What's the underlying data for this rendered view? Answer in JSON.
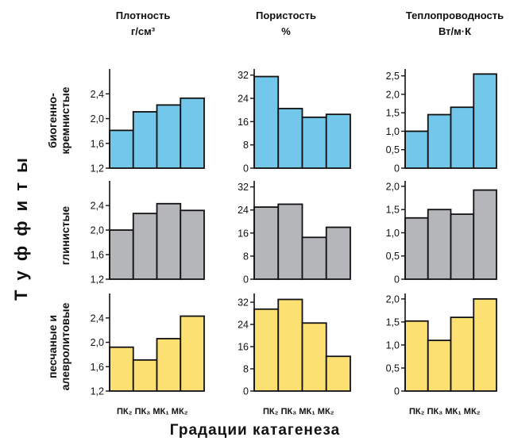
{
  "columns": [
    {
      "title_line1": "Плотность",
      "title_line2": "г/см³"
    },
    {
      "title_line1": "Пористость",
      "title_line2": "%"
    },
    {
      "title_line1": "Теплопроводность",
      "title_line2": "Вт/м·К"
    }
  ],
  "rows": [
    "биогенно-кремнистые",
    "глинистые",
    "песчаные и алевролитовые"
  ],
  "row_label_lines": [
    [
      "биогенно-",
      "кремнистые"
    ],
    [
      "глинистые",
      ""
    ],
    [
      "песчаные и",
      "алевролитовые"
    ]
  ],
  "y_group_label": "Т у ф ф и т ы",
  "x_title": "Градации катагенеза",
  "x_tick_labels": "ПК₂ ПК₃ МК₁ МК₂",
  "colors": {
    "blue": "#72C7EA",
    "gray": "#B5B6B9",
    "yellow": "#FCE072",
    "axis": "#111111"
  },
  "chart_data": [
    {
      "type": "bar",
      "row": "биогенно-кремнистые",
      "column": "Плотность г/см³",
      "categories": [
        "ПК₂",
        "ПК₃",
        "МК₁",
        "МК₂"
      ],
      "values": [
        1.81,
        2.11,
        2.22,
        2.33
      ],
      "ylim": [
        1.2,
        2.75
      ],
      "yticks": [
        "1,2",
        "1,6",
        "2,0",
        "2,4"
      ],
      "color": "#72C7EA"
    },
    {
      "type": "bar",
      "row": "биогенно-кремнистые",
      "column": "Пористость %",
      "categories": [
        "ПК₂",
        "ПК₃",
        "МК₁",
        "МК₂"
      ],
      "values": [
        31.5,
        20.5,
        17.5,
        18.5
      ],
      "ylim": [
        0,
        33
      ],
      "yticks": [
        "0",
        "8",
        "16",
        "24",
        "32"
      ],
      "color": "#72C7EA"
    },
    {
      "type": "bar",
      "row": "биогенно-кремнистые",
      "column": "Теплопроводность Вт/м·К",
      "categories": [
        "ПК₂",
        "ПК₃",
        "МК₁",
        "МК₂"
      ],
      "values": [
        1.0,
        1.45,
        1.65,
        2.55
      ],
      "ylim": [
        0,
        2.6
      ],
      "yticks": [
        "0",
        "0,5",
        "1,0",
        "1,5",
        "2,0",
        "2,5"
      ],
      "color": "#72C7EA"
    },
    {
      "type": "bar",
      "row": "глинистые",
      "column": "Плотность г/см³",
      "categories": [
        "ПК₂",
        "ПК₃",
        "МК₁",
        "МК₂"
      ],
      "values": [
        2.0,
        2.27,
        2.43,
        2.32
      ],
      "ylim": [
        1.2,
        2.75
      ],
      "yticks": [
        "1,2",
        "1,6",
        "2,0",
        "2,4"
      ],
      "color": "#B5B6B9"
    },
    {
      "type": "bar",
      "row": "глинистые",
      "column": "Пористость %",
      "categories": [
        "ПК₂",
        "ПК₃",
        "МК₁",
        "МК₂"
      ],
      "values": [
        25.0,
        26.0,
        14.5,
        18.0
      ],
      "ylim": [
        0,
        33
      ],
      "yticks": [
        "0",
        "8",
        "16",
        "24",
        "32"
      ],
      "color": "#B5B6B9"
    },
    {
      "type": "bar",
      "row": "глинистые",
      "column": "Теплопроводность Вт/м·К",
      "categories": [
        "ПК₂",
        "ПК₃",
        "МК₁",
        "МК₂"
      ],
      "values": [
        1.32,
        1.5,
        1.4,
        1.92
      ],
      "ylim": [
        0,
        2.05
      ],
      "yticks": [
        "0",
        "0,5",
        "1,0",
        "1,5",
        "2,0"
      ],
      "color": "#B5B6B9"
    },
    {
      "type": "bar",
      "row": "песчаные и алевролитовые",
      "column": "Плотность г/см³",
      "categories": [
        "ПК₂",
        "ПК₃",
        "МК₁",
        "МК₂"
      ],
      "values": [
        1.92,
        1.71,
        2.06,
        2.43
      ],
      "ylim": [
        1.2,
        2.75
      ],
      "yticks": [
        "1,2",
        "1,6",
        "2,0",
        "2,4"
      ],
      "color": "#FCE072"
    },
    {
      "type": "bar",
      "row": "песчаные и алевролитовые",
      "column": "Пористость %",
      "categories": [
        "ПК₂",
        "ПК₃",
        "МК₁",
        "МК₂"
      ],
      "values": [
        29.5,
        33.0,
        24.5,
        12.5
      ],
      "ylim": [
        0,
        34
      ],
      "yticks": [
        "0",
        "8",
        "16",
        "24",
        "32"
      ],
      "color": "#FCE072"
    },
    {
      "type": "bar",
      "row": "песчаные и алевролитовые",
      "column": "Теплопроводность Вт/м·К",
      "categories": [
        "ПК₂",
        "ПК₃",
        "МК₁",
        "МК₂"
      ],
      "values": [
        1.52,
        1.1,
        1.6,
        2.0
      ],
      "ylim": [
        0,
        2.05
      ],
      "yticks": [
        "0",
        "0,5",
        "1,0",
        "1,5",
        "2,0"
      ],
      "color": "#FCE072"
    }
  ]
}
